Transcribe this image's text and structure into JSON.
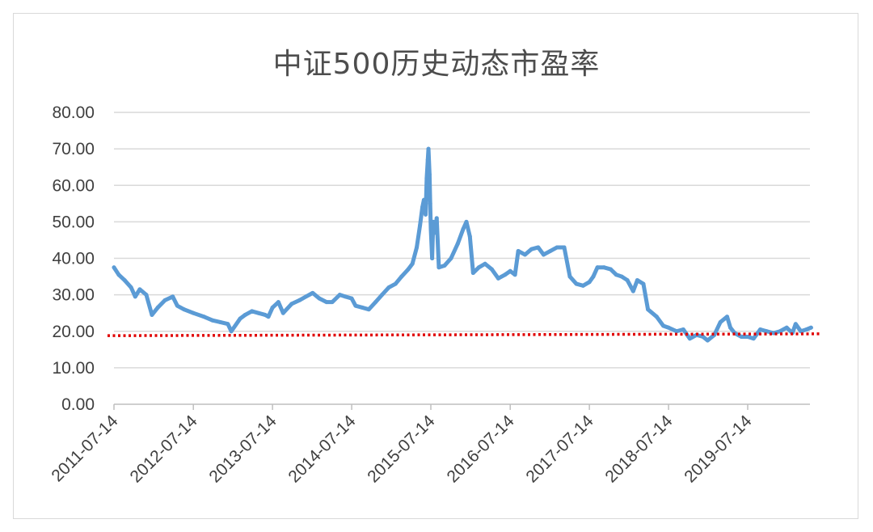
{
  "chart_data": {
    "type": "line",
    "title": "中证500历史动态市盈率",
    "xlabel": "",
    "ylabel": "",
    "ylim": [
      0,
      80
    ],
    "yticks": [
      "0.00",
      "10.00",
      "20.00",
      "30.00",
      "40.00",
      "50.00",
      "60.00",
      "70.00",
      "80.00"
    ],
    "xticks": [
      "2011-07-14",
      "2012-07-14",
      "2013-07-14",
      "2014-07-14",
      "2015-07-14",
      "2016-07-14",
      "2017-07-14",
      "2018-07-14",
      "2019-07-14"
    ],
    "xlim": [
      "2011-07-14",
      "2020-05-01"
    ],
    "grid": "horizontal",
    "legend": "none",
    "series": [
      {
        "color": "#5b9bd5",
        "style": "solid",
        "points": [
          [
            "2011-07-14",
            37.5
          ],
          [
            "2011-08-05",
            35.5
          ],
          [
            "2011-09-01",
            34.0
          ],
          [
            "2011-10-01",
            32.0
          ],
          [
            "2011-10-20",
            29.5
          ],
          [
            "2011-11-10",
            31.5
          ],
          [
            "2011-12-10",
            30.0
          ],
          [
            "2012-01-05",
            24.5
          ],
          [
            "2012-02-01",
            26.5
          ],
          [
            "2012-03-05",
            28.5
          ],
          [
            "2012-04-10",
            29.5
          ],
          [
            "2012-05-01",
            27.0
          ],
          [
            "2012-06-01",
            26.0
          ],
          [
            "2012-07-14",
            25.0
          ],
          [
            "2012-09-01",
            24.0
          ],
          [
            "2012-10-10",
            23.0
          ],
          [
            "2012-11-15",
            22.5
          ],
          [
            "2012-12-20",
            22.0
          ],
          [
            "2013-01-05",
            20.0
          ],
          [
            "2013-02-15",
            23.5
          ],
          [
            "2013-03-10",
            24.5
          ],
          [
            "2013-04-10",
            25.5
          ],
          [
            "2013-05-10",
            25.0
          ],
          [
            "2013-06-10",
            24.5
          ],
          [
            "2013-06-25",
            24.0
          ],
          [
            "2013-07-14",
            26.5
          ],
          [
            "2013-08-10",
            28.0
          ],
          [
            "2013-09-01",
            25.0
          ],
          [
            "2013-10-10",
            27.5
          ],
          [
            "2013-11-15",
            28.5
          ],
          [
            "2013-12-15",
            29.5
          ],
          [
            "2014-01-15",
            30.5
          ],
          [
            "2014-02-15",
            29.0
          ],
          [
            "2014-03-20",
            28.0
          ],
          [
            "2014-04-15",
            28.0
          ],
          [
            "2014-05-20",
            30.0
          ],
          [
            "2014-06-15",
            29.5
          ],
          [
            "2014-07-14",
            29.0
          ],
          [
            "2014-08-01",
            27.0
          ],
          [
            "2014-09-01",
            26.5
          ],
          [
            "2014-10-01",
            26.0
          ],
          [
            "2014-11-01",
            28.0
          ],
          [
            "2014-12-01",
            30.0
          ],
          [
            "2015-01-01",
            32.0
          ],
          [
            "2015-02-01",
            33.0
          ],
          [
            "2015-03-01",
            35.0
          ],
          [
            "2015-04-01",
            37.0
          ],
          [
            "2015-04-20",
            38.5
          ],
          [
            "2015-05-10",
            43.0
          ],
          [
            "2015-05-25",
            49.0
          ],
          [
            "2015-06-05",
            54.0
          ],
          [
            "2015-06-12",
            56.0
          ],
          [
            "2015-06-20",
            52.0
          ],
          [
            "2015-06-25",
            62.0
          ],
          [
            "2015-06-30",
            67.0
          ],
          [
            "2015-07-03",
            70.0
          ],
          [
            "2015-07-08",
            63.0
          ],
          [
            "2015-07-11",
            55.0
          ],
          [
            "2015-07-14",
            48.0
          ],
          [
            "2015-07-20",
            40.0
          ],
          [
            "2015-07-25",
            50.0
          ],
          [
            "2015-08-01",
            47.0
          ],
          [
            "2015-08-10",
            51.0
          ],
          [
            "2015-08-20",
            37.5
          ],
          [
            "2015-09-15",
            38.0
          ],
          [
            "2015-10-15",
            40.0
          ],
          [
            "2015-11-15",
            44.0
          ],
          [
            "2015-12-10",
            48.0
          ],
          [
            "2015-12-25",
            50.0
          ],
          [
            "2016-01-10",
            46.0
          ],
          [
            "2016-01-25",
            36.0
          ],
          [
            "2016-02-20",
            37.5
          ],
          [
            "2016-03-20",
            38.5
          ],
          [
            "2016-04-20",
            37.0
          ],
          [
            "2016-05-20",
            34.5
          ],
          [
            "2016-06-20",
            35.5
          ],
          [
            "2016-07-14",
            36.5
          ],
          [
            "2016-08-05",
            35.5
          ],
          [
            "2016-08-20",
            42.0
          ],
          [
            "2016-09-20",
            41.0
          ],
          [
            "2016-10-20",
            42.5
          ],
          [
            "2016-11-20",
            43.0
          ],
          [
            "2016-12-15",
            41.0
          ],
          [
            "2017-01-15",
            42.0
          ],
          [
            "2017-02-15",
            43.0
          ],
          [
            "2017-03-20",
            43.0
          ],
          [
            "2017-04-15",
            35.0
          ],
          [
            "2017-05-15",
            33.0
          ],
          [
            "2017-06-15",
            32.5
          ],
          [
            "2017-07-14",
            33.5
          ],
          [
            "2017-08-01",
            35.0
          ],
          [
            "2017-08-20",
            37.5
          ],
          [
            "2017-09-20",
            37.5
          ],
          [
            "2017-10-20",
            37.0
          ],
          [
            "2017-11-15",
            35.5
          ],
          [
            "2017-12-10",
            35.0
          ],
          [
            "2018-01-05",
            34.0
          ],
          [
            "2018-02-01",
            31.0
          ],
          [
            "2018-02-20",
            34.0
          ],
          [
            "2018-03-20",
            33.0
          ],
          [
            "2018-04-10",
            26.0
          ],
          [
            "2018-05-20",
            24.0
          ],
          [
            "2018-06-20",
            21.5
          ],
          [
            "2018-07-14",
            21.0
          ],
          [
            "2018-08-20",
            20.0
          ],
          [
            "2018-09-20",
            20.5
          ],
          [
            "2018-10-20",
            18.0
          ],
          [
            "2018-11-20",
            19.0
          ],
          [
            "2018-12-20",
            18.5
          ],
          [
            "2019-01-10",
            17.5
          ],
          [
            "2019-02-10",
            19.0
          ],
          [
            "2019-03-10",
            22.5
          ],
          [
            "2019-04-10",
            24.0
          ],
          [
            "2019-04-25",
            21.0
          ],
          [
            "2019-05-15",
            19.5
          ],
          [
            "2019-06-15",
            18.5
          ],
          [
            "2019-07-14",
            18.5
          ],
          [
            "2019-08-10",
            18.0
          ],
          [
            "2019-09-10",
            20.5
          ],
          [
            "2019-10-10",
            20.0
          ],
          [
            "2019-11-10",
            19.5
          ],
          [
            "2019-12-10",
            20.0
          ],
          [
            "2020-01-10",
            21.0
          ],
          [
            "2020-02-05",
            19.5
          ],
          [
            "2020-02-20",
            22.0
          ],
          [
            "2020-03-15",
            20.0
          ],
          [
            "2020-04-10",
            20.5
          ],
          [
            "2020-05-01",
            21.0
          ]
        ]
      },
      {
        "color": "#e00000",
        "style": "dotted",
        "points": [
          [
            "2011-07-14",
            18.8
          ],
          [
            "2020-05-01",
            19.3
          ]
        ]
      }
    ]
  }
}
